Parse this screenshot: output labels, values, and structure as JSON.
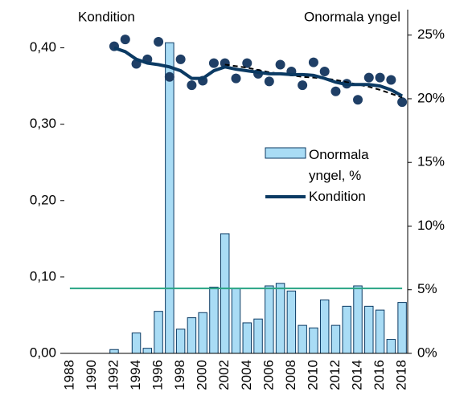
{
  "chart_data": {
    "type": "bar",
    "title_left": "Kondition",
    "title_right": "Onormala yngel",
    "categories": [
      "1988",
      null,
      "1990",
      null,
      "1992",
      null,
      "1994",
      null,
      "1996",
      null,
      "1998",
      null,
      "2000",
      null,
      "2002",
      null,
      "2004",
      null,
      "2006",
      null,
      "2008",
      null,
      "2010",
      null,
      "2012",
      null,
      "2014",
      null,
      "2016",
      null,
      "2018"
    ],
    "series": [
      {
        "name": "Onormala yngel, %",
        "color": "#a9dcf5",
        "axis": "y2",
        "type": "bar",
        "values": [
          0,
          0,
          0,
          0,
          0.3,
          0,
          1.6,
          0.4,
          3.3,
          24.4,
          1.9,
          2.8,
          3.2,
          5.2,
          9.4,
          5.1,
          2.4,
          2.7,
          5.3,
          5.5,
          4.9,
          2.2,
          2.0,
          4.2,
          2.2,
          3.7,
          5.3,
          3.7,
          3.4,
          1.1,
          4.0
        ]
      },
      {
        "name": "Kondition",
        "color": "#0b3a63",
        "axis": "y",
        "type": "line",
        "values": [
          null,
          null,
          null,
          null,
          0.4,
          0.395,
          0.385,
          0.38,
          0.378,
          0.375,
          0.37,
          0.36,
          0.36,
          0.37,
          0.375,
          0.372,
          0.37,
          0.368,
          0.366,
          0.366,
          0.365,
          0.365,
          0.364,
          0.36,
          0.355,
          0.352,
          0.352,
          0.352,
          0.35,
          0.345,
          0.337
        ]
      }
    ],
    "points": {
      "color": "#1f3f66",
      "values": [
        null,
        null,
        null,
        null,
        0.402,
        0.411,
        0.379,
        0.385,
        0.408,
        0.362,
        0.385,
        0.351,
        0.357,
        0.38,
        0.38,
        0.36,
        0.38,
        0.366,
        0.356,
        0.378,
        0.369,
        0.351,
        0.381,
        0.369,
        0.343,
        0.353,
        0.332,
        0.361,
        0.361,
        0.358,
        0.329
      ]
    },
    "trend": {
      "color": "#000000",
      "values": [
        null,
        null,
        null,
        null,
        null,
        null,
        null,
        null,
        null,
        null,
        null,
        null,
        null,
        null,
        0.378,
        0.376,
        0.374,
        0.371,
        0.368,
        0.366,
        0.364,
        0.362,
        0.361,
        0.36,
        0.358,
        0.355,
        0.352,
        0.349,
        0.345,
        0.34,
        0.335
      ]
    },
    "reference_line": {
      "value": 5.1,
      "axis": "y2",
      "color": "#2aa585"
    },
    "ylim": [
      0,
      0.45
    ],
    "yticks": [
      {
        "value": 0,
        "label": "0,00"
      },
      {
        "value": 0.1,
        "label": "0,10"
      },
      {
        "value": 0.2,
        "label": "0,20"
      },
      {
        "value": 0.3,
        "label": "0,30"
      },
      {
        "value": 0.4,
        "label": "0,40"
      }
    ],
    "y2lim": [
      0,
      27
    ],
    "y2ticks": [
      {
        "value": 0,
        "label": "0%"
      },
      {
        "value": 5,
        "label": "5%"
      },
      {
        "value": 10,
        "label": "10%"
      },
      {
        "value": 15,
        "label": "15%"
      },
      {
        "value": 20,
        "label": "20%"
      },
      {
        "value": 25,
        "label": "25%"
      }
    ]
  }
}
